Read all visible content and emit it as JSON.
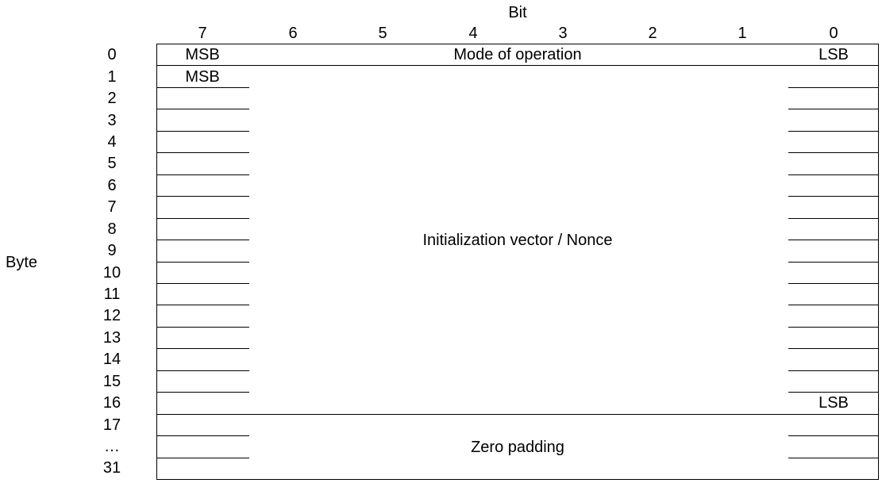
{
  "diagram": {
    "bit_header": "Bit",
    "byte_header": "Byte",
    "bit_numbers": [
      "7",
      "6",
      "5",
      "4",
      "3",
      "2",
      "1",
      "0"
    ],
    "byte_labels": [
      "0",
      "1",
      "2",
      "3",
      "4",
      "5",
      "6",
      "7",
      "8",
      "9",
      "10",
      "11",
      "12",
      "13",
      "14",
      "15",
      "16",
      "17",
      "…",
      "31"
    ],
    "fields": {
      "mode": {
        "msb": "MSB",
        "name": "Mode of operation",
        "lsb": "LSB"
      },
      "iv": {
        "msb": "MSB",
        "name": "Initialization vector / Nonce",
        "lsb": "LSB"
      },
      "padding": {
        "name": "Zero padding"
      }
    }
  }
}
